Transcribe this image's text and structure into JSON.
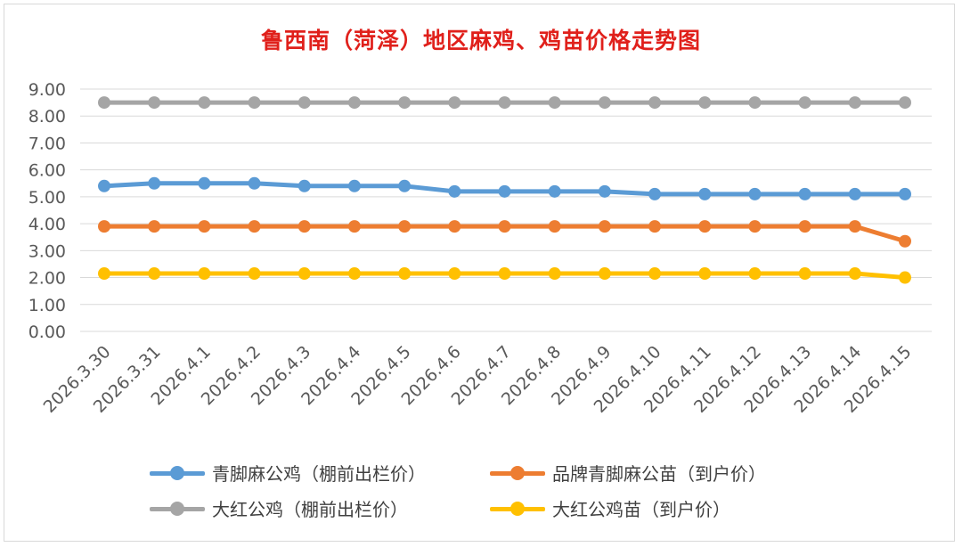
{
  "chart_data": {
    "type": "line",
    "title": "鲁西南（菏泽）地区麻鸡、鸡苗价格走势图",
    "xlabel": "",
    "ylabel": "",
    "ylim": [
      0,
      9
    ],
    "yticks": [
      "0.00",
      "1.00",
      "2.00",
      "3.00",
      "4.00",
      "5.00",
      "6.00",
      "7.00",
      "8.00",
      "9.00"
    ],
    "grid": true,
    "legend_position": "bottom",
    "categories": [
      "2026.3.30",
      "2026.3.31",
      "2026.4.1",
      "2026.4.2",
      "2026.4.3",
      "2026.4.4",
      "2026.4.5",
      "2026.4.6",
      "2026.4.7",
      "2026.4.8",
      "2026.4.9",
      "2026.4.10",
      "2026.4.11",
      "2026.4.12",
      "2026.4.13",
      "2026.4.14",
      "2026.4.15"
    ],
    "series": [
      {
        "name": "青脚麻公鸡（棚前出栏价）",
        "color": "#5b9bd5",
        "values": [
          5.4,
          5.5,
          5.5,
          5.5,
          5.4,
          5.4,
          5.4,
          5.2,
          5.2,
          5.2,
          5.2,
          5.1,
          5.1,
          5.1,
          5.1,
          5.1,
          5.1
        ]
      },
      {
        "name": "品牌青脚麻公苗（到户价）",
        "color": "#ed7d31",
        "values": [
          3.9,
          3.9,
          3.9,
          3.9,
          3.9,
          3.9,
          3.9,
          3.9,
          3.9,
          3.9,
          3.9,
          3.9,
          3.9,
          3.9,
          3.9,
          3.9,
          3.35
        ]
      },
      {
        "name": "大红公鸡（棚前出栏价）",
        "color": "#a5a5a5",
        "values": [
          8.5,
          8.5,
          8.5,
          8.5,
          8.5,
          8.5,
          8.5,
          8.5,
          8.5,
          8.5,
          8.5,
          8.5,
          8.5,
          8.5,
          8.5,
          8.5,
          8.5
        ]
      },
      {
        "name": "大红公鸡苗（到户价）",
        "color": "#ffc000",
        "values": [
          2.15,
          2.15,
          2.15,
          2.15,
          2.15,
          2.15,
          2.15,
          2.15,
          2.15,
          2.15,
          2.15,
          2.15,
          2.15,
          2.15,
          2.15,
          2.15,
          2.0
        ]
      }
    ]
  }
}
